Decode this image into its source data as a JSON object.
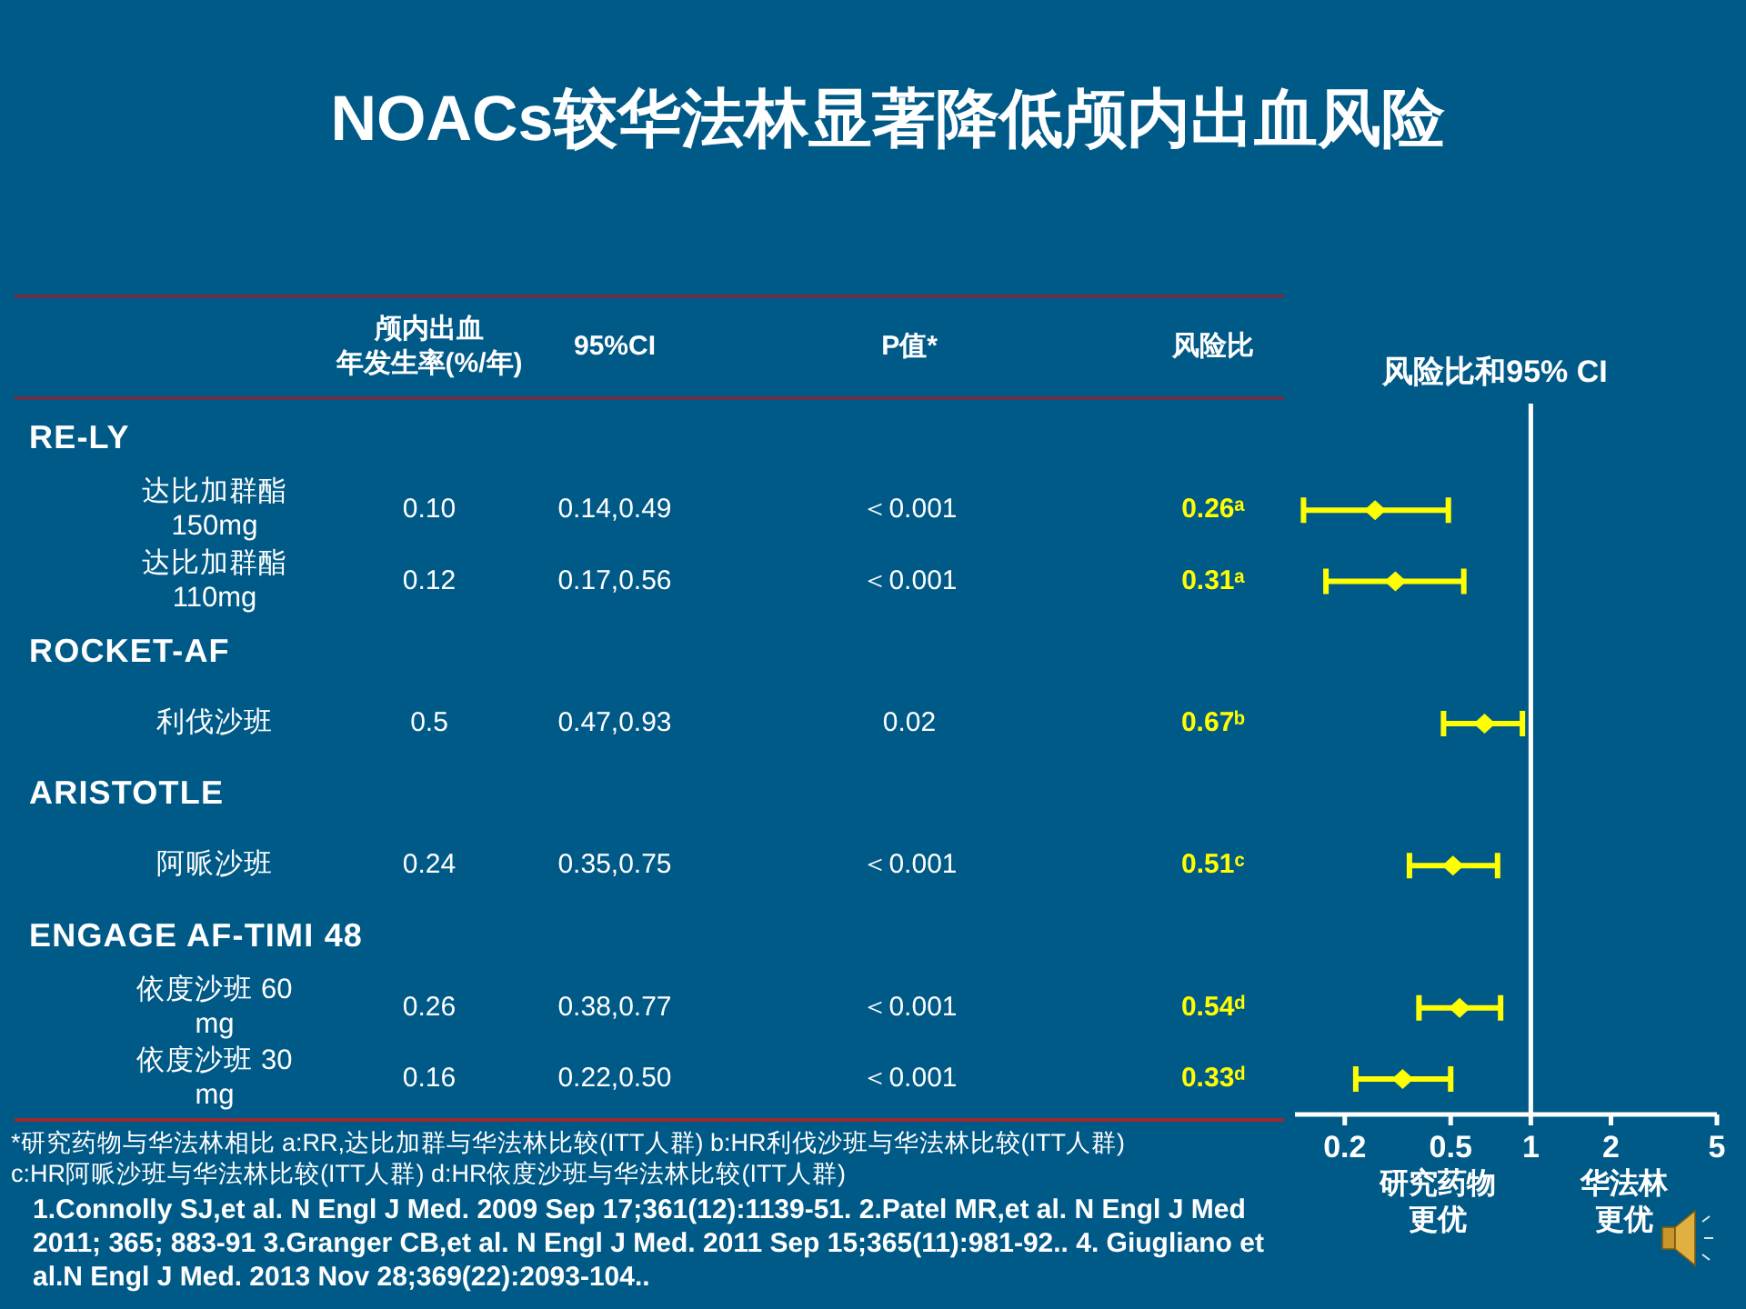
{
  "chart_data": [
    {
      "type": "other",
      "title": "NOACs较华法林显著降低颅内出血风险",
      "categories": [
        "颅内出血年发生率(%/年)",
        "95%CI",
        "P值*",
        "风险比"
      ],
      "y_categories": [
        "RE-LY",
        "达比加群酯\n150mg",
        "达比加群酯\n110mg",
        "ROCKET-AF",
        "利伐沙班",
        "ARISTOTLE",
        "阿哌沙班",
        "ENGAGE AF-TIMI 48",
        "依度沙班 60\nmg",
        "依度沙班 30\nmg"
      ],
      "cell_labels": [
        [
          null,
          null,
          null,
          null
        ],
        [
          "0.10",
          "0.14,0.49",
          "＜0.001",
          "0.26ᵃ"
        ],
        [
          "0.12",
          "0.17,0.56",
          "＜0.001",
          "0.31ᵃ"
        ],
        [
          null,
          null,
          null,
          null
        ],
        [
          "0.5",
          "0.47,0.93",
          "0.02",
          "0.67ᵇ"
        ],
        [
          null,
          null,
          null,
          null
        ],
        [
          "0.24",
          "0.35,0.75",
          "＜0.001",
          "0.51ᶜ"
        ],
        [
          null,
          null,
          null,
          null
        ],
        [
          "0.26",
          "0.38,0.77",
          "＜0.001",
          "0.54ᵈ"
        ],
        [
          "0.16",
          "0.22,0.50",
          "＜0.001",
          "0.33ᵈ"
        ]
      ],
      "annotations": [
        "*研究药物与华法林相比 a:RR,达比加群与华法林比较(ITT人群) b:HR利伐沙班与华法林比较(ITT人群)\nc:HR阿哌沙班与华法林比较(ITT人群) d:HR依度沙班与华法林比较(ITT人群)",
        "1.Connolly SJ,et al. N Engl J Med. 2009 Sep 17;361(12):1139-51. 2.Patel MR,et al. N Engl J Med\n2011; 365; 883-91 3.Granger CB,et al. N Engl J Med. 2011 Sep 15;365(11):981-92.. 4. Giugliano et\nal.N Engl J Med. 2013 Nov 28;369(22):2093-104.."
      ]
    },
    {
      "type": "scatter",
      "title": "风险比和95% CI",
      "orientation": "horizontal",
      "categories": [
        null,
        null,
        null,
        null,
        null,
        null,
        null,
        null,
        null,
        null
      ],
      "values": [
        null,
        0.26,
        0.31,
        null,
        0.67,
        null,
        0.51,
        null,
        0.54,
        0.33
      ],
      "errors": [
        null,
        [
          0.14,
          0.49
        ],
        [
          0.17,
          0.56
        ],
        null,
        [
          0.47,
          0.93
        ],
        null,
        [
          0.35,
          0.75
        ],
        null,
        [
          0.38,
          0.77
        ],
        [
          0.22,
          0.5
        ]
      ],
      "color": "#ffff00",
      "marker": "diamond",
      "log": "x",
      "xlim": [
        0.13,
        5
      ],
      "xticks": [
        0.2,
        0.5,
        1,
        2,
        5
      ],
      "ref_lines": [
        {
          "axis": "x",
          "value": 1,
          "color": "#ffffff"
        }
      ],
      "annotations": [
        "研究药物更优",
        "华法林更优"
      ]
    }
  ]
}
